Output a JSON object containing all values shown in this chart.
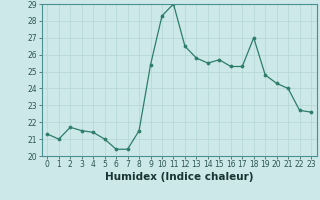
{
  "x": [
    0,
    1,
    2,
    3,
    4,
    5,
    6,
    7,
    8,
    9,
    10,
    11,
    12,
    13,
    14,
    15,
    16,
    17,
    18,
    19,
    20,
    21,
    22,
    23
  ],
  "y": [
    21.3,
    21.0,
    21.7,
    21.5,
    21.4,
    21.0,
    20.4,
    20.4,
    21.5,
    25.4,
    28.3,
    29.0,
    26.5,
    25.8,
    25.5,
    25.7,
    25.3,
    25.3,
    27.0,
    24.8,
    24.3,
    24.0,
    22.7,
    22.6
  ],
  "xlabel": "Humidex (Indice chaleur)",
  "ylim": [
    20,
    29
  ],
  "xlim_min": -0.5,
  "xlim_max": 23.5,
  "yticks": [
    20,
    21,
    22,
    23,
    24,
    25,
    26,
    27,
    28,
    29
  ],
  "xticks": [
    0,
    1,
    2,
    3,
    4,
    5,
    6,
    7,
    8,
    9,
    10,
    11,
    12,
    13,
    14,
    15,
    16,
    17,
    18,
    19,
    20,
    21,
    22,
    23
  ],
  "line_color": "#2d7d6b",
  "bg_color": "#cde8e8",
  "grid_color": "#b8d8d8",
  "spine_color": "#4a9090",
  "tick_color": "#2d5555",
  "xlabel_color": "#1a3333",
  "tick_fontsize": 5.5,
  "xlabel_fontsize": 7.5
}
